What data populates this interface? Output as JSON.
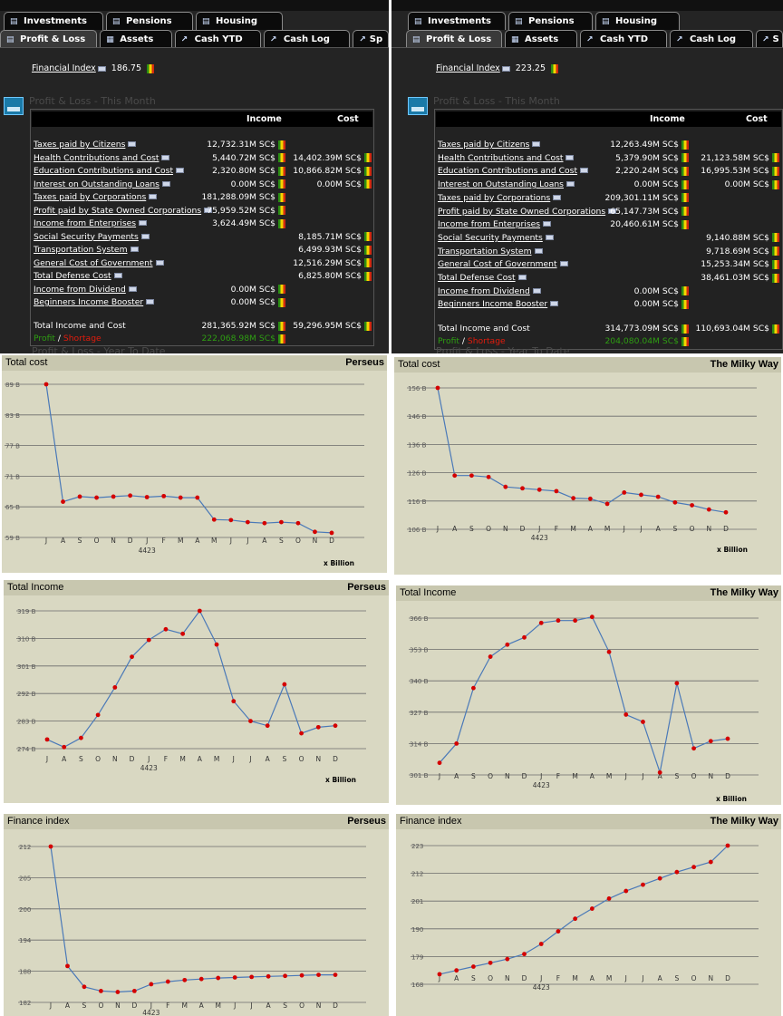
{
  "left": {
    "tabs_row1": [
      "Investments",
      "Pensions",
      "Housing"
    ],
    "tabs_row2": [
      "Profit & Loss",
      "Assets",
      "Cash YTD",
      "Cash Log",
      "Sp"
    ],
    "financial_index_label": "Financial Index",
    "financial_index_value": "186.75",
    "section_title": "Profit & Loss - This Month",
    "ytd_title": "Profit & Loss - Year To Date",
    "table": {
      "col_income": "Income",
      "col_cost": "Cost",
      "rows": [
        {
          "label": "Taxes paid by Citizens",
          "income": "12,732.31M SC$",
          "cost": ""
        },
        {
          "label": "Health Contributions and Cost",
          "income": "5,440.72M SC$",
          "cost": "14,402.39M SC$"
        },
        {
          "label": "Education Contributions and Cost",
          "income": "2,320.80M SC$",
          "cost": "10,866.82M SC$"
        },
        {
          "label": "Interest on Outstanding Loans",
          "income": "0.00M SC$",
          "cost": "0.00M SC$"
        },
        {
          "label": "Taxes paid by Corporations",
          "income": "181,288.09M SC$",
          "cost": ""
        },
        {
          "label": "Profit paid by State Owned Corporations",
          "income": "75,959.52M SC$",
          "cost": ""
        },
        {
          "label": "Income from Enterprises",
          "income": "3,624.49M SC$",
          "cost": ""
        },
        {
          "label": "Social Security Payments",
          "income": "",
          "cost": "8,185.71M SC$"
        },
        {
          "label": "Transportation System",
          "income": "",
          "cost": "6,499.93M SC$"
        },
        {
          "label": "General Cost of Government",
          "income": "",
          "cost": "12,516.29M SC$"
        },
        {
          "label": "Total Defense Cost",
          "income": "",
          "cost": "6,825.80M SC$"
        },
        {
          "label": "Income from Dividend",
          "income": "0.00M SC$",
          "cost": ""
        },
        {
          "label": "Beginners Income Booster",
          "income": "0.00M SC$",
          "cost": ""
        }
      ],
      "total_label": "Total Income and Cost",
      "total_income": "281,365.92M SC$",
      "total_cost": "59,296.95M SC$",
      "profit_label": "Profit",
      "shortage_label": "Shortage",
      "profit_value": "222,068.98M SC$"
    }
  },
  "right": {
    "tabs_row1": [
      "Investments",
      "Pensions",
      "Housing"
    ],
    "tabs_row2": [
      "Profit & Loss",
      "Assets",
      "Cash YTD",
      "Cash Log",
      "S"
    ],
    "financial_index_label": "Financial Index",
    "financial_index_value": "223.25",
    "section_title": "Profit & Loss - This Month",
    "ytd_title": "Profit & Loss - Year To Date",
    "table": {
      "col_income": "Income",
      "col_cost": "Cost",
      "rows": [
        {
          "label": "Taxes paid by Citizens",
          "income": "12,263.49M SC$",
          "cost": ""
        },
        {
          "label": "Health Contributions and Cost",
          "income": "5,379.90M SC$",
          "cost": "21,123.58M SC$"
        },
        {
          "label": "Education Contributions and Cost",
          "income": "2,220.24M SC$",
          "cost": "16,995.53M SC$"
        },
        {
          "label": "Interest on Outstanding Loans",
          "income": "0.00M SC$",
          "cost": "0.00M SC$"
        },
        {
          "label": "Taxes paid by Corporations",
          "income": "209,301.11M SC$",
          "cost": ""
        },
        {
          "label": "Profit paid by State Owned Corporations",
          "income": "65,147.73M SC$",
          "cost": ""
        },
        {
          "label": "Income from Enterprises",
          "income": "20,460.61M SC$",
          "cost": ""
        },
        {
          "label": "Social Security Payments",
          "income": "",
          "cost": "9,140.88M SC$"
        },
        {
          "label": "Transportation System",
          "income": "",
          "cost": "9,718.69M SC$"
        },
        {
          "label": "General Cost of Government",
          "income": "",
          "cost": "15,253.34M SC$"
        },
        {
          "label": "Total Defense Cost",
          "income": "",
          "cost": "38,461.03M SC$"
        },
        {
          "label": "Income from Dividend",
          "income": "0.00M SC$",
          "cost": ""
        },
        {
          "label": "Beginners Income Booster",
          "income": "0.00M SC$",
          "cost": ""
        }
      ],
      "total_label": "Total Income and Cost",
      "total_income": "314,773.09M SC$",
      "total_cost": "110,693.04M SC$",
      "profit_label": "Profit",
      "shortage_label": "Shortage",
      "profit_value": "204,080.04M SC$"
    }
  },
  "colors": {
    "panel_bg": "#242424",
    "chart_bg": "#d9d8c2",
    "line": "#4a79b8",
    "point": "#d40000",
    "profit": "#2e9e12",
    "shortage": "#e21b0c"
  },
  "chart_data": [
    {
      "type": "line",
      "title": "Total cost",
      "region": "Perseus",
      "x": [
        "J",
        "A",
        "S",
        "O",
        "N",
        "D",
        "J",
        "F",
        "M",
        "A",
        "M",
        "J",
        "J",
        "A",
        "S",
        "O",
        "N",
        "D"
      ],
      "year_label": "4423",
      "unit_label": "x Billion",
      "y_ticks": [
        "89 B",
        "83 B",
        "77 B",
        "71 B",
        "65 B",
        "59 B"
      ],
      "ylim": [
        59,
        89
      ],
      "values": [
        89.0,
        66.0,
        67.0,
        66.8,
        67.0,
        67.2,
        66.9,
        67.1,
        66.8,
        66.8,
        62.5,
        62.4,
        62.0,
        61.8,
        62.0,
        61.8,
        60.1,
        59.9
      ]
    },
    {
      "type": "line",
      "title": "Total cost",
      "region": "The Milky Way",
      "x": [
        "J",
        "A",
        "S",
        "O",
        "N",
        "D",
        "J",
        "F",
        "M",
        "A",
        "M",
        "J",
        "J",
        "A",
        "S",
        "O",
        "N",
        "D"
      ],
      "year_label": "4423",
      "unit_label": "x Billion",
      "y_ticks": [
        "156 B",
        "146 B",
        "136 B",
        "126 B",
        "116 B",
        "106 B"
      ],
      "ylim": [
        106,
        156
      ],
      "values": [
        156.0,
        125.0,
        125.0,
        124.5,
        121.0,
        120.5,
        120.0,
        119.5,
        117.0,
        116.8,
        115.0,
        119.0,
        118.2,
        117.5,
        115.5,
        114.5,
        113.0,
        112.0
      ]
    },
    {
      "type": "line",
      "title": "Total Income",
      "region": "Perseus",
      "x": [
        "J",
        "A",
        "S",
        "O",
        "N",
        "D",
        "J",
        "F",
        "M",
        "A",
        "M",
        "J",
        "J",
        "A",
        "S",
        "O",
        "N",
        "D"
      ],
      "year_label": "4423",
      "unit_label": "x Billion",
      "y_ticks": [
        "319 B",
        "310 B",
        "301 B",
        "292 B",
        "283 B",
        "274 B"
      ],
      "ylim": [
        274,
        319
      ],
      "values": [
        277.0,
        274.5,
        277.5,
        285.0,
        294.0,
        304.0,
        309.5,
        313.0,
        311.5,
        319.0,
        308.0,
        289.5,
        283.0,
        281.5,
        295.0,
        279.0,
        281.0,
        281.5
      ]
    },
    {
      "type": "line",
      "title": "Total Income",
      "region": "The Milky Way",
      "x": [
        "J",
        "A",
        "S",
        "O",
        "N",
        "D",
        "J",
        "F",
        "M",
        "A",
        "M",
        "J",
        "J",
        "A",
        "S",
        "O",
        "N",
        "D"
      ],
      "year_label": "4423",
      "unit_label": "x Billion",
      "y_ticks": [
        "366 B",
        "353 B",
        "340 B",
        "327 B",
        "314 B",
        "301 B"
      ],
      "ylim": [
        301,
        366
      ],
      "values": [
        306.0,
        314.0,
        337.0,
        350.0,
        355.0,
        358.0,
        364.0,
        365.0,
        365.0,
        366.5,
        352.0,
        326.0,
        323.0,
        302.0,
        339.0,
        312.0,
        315.0,
        316.0
      ]
    },
    {
      "type": "line",
      "title": "Finance index",
      "region": "Perseus",
      "x": [
        "J",
        "A",
        "S",
        "O",
        "N",
        "D",
        "J",
        "F",
        "M",
        "A",
        "M",
        "J",
        "J",
        "A",
        "S",
        "O",
        "N",
        "D"
      ],
      "year_label": "4423",
      "y_ticks": [
        "212",
        "205",
        "200",
        "194",
        "188",
        "182"
      ],
      "ylim": [
        182,
        212
      ],
      "values": [
        212.0,
        189.0,
        185.0,
        184.2,
        184.0,
        184.2,
        185.5,
        186.0,
        186.3,
        186.5,
        186.7,
        186.8,
        186.9,
        187.0,
        187.1,
        187.2,
        187.3,
        187.3
      ]
    },
    {
      "type": "line",
      "title": "Finance index",
      "region": "The Milky Way",
      "x": [
        "J",
        "A",
        "S",
        "O",
        "N",
        "D",
        "J",
        "F",
        "M",
        "A",
        "M",
        "J",
        "J",
        "A",
        "S",
        "O",
        "N",
        "D"
      ],
      "year_label": "4423",
      "y_ticks": [
        "223",
        "212",
        "201",
        "190",
        "179",
        "168"
      ],
      "ylim": [
        168,
        223
      ],
      "values": [
        172.0,
        173.5,
        175.0,
        176.5,
        178.0,
        180.0,
        184.0,
        189.0,
        194.0,
        198.0,
        202.0,
        205.0,
        207.5,
        210.0,
        212.5,
        214.5,
        216.5,
        223.0
      ]
    }
  ]
}
